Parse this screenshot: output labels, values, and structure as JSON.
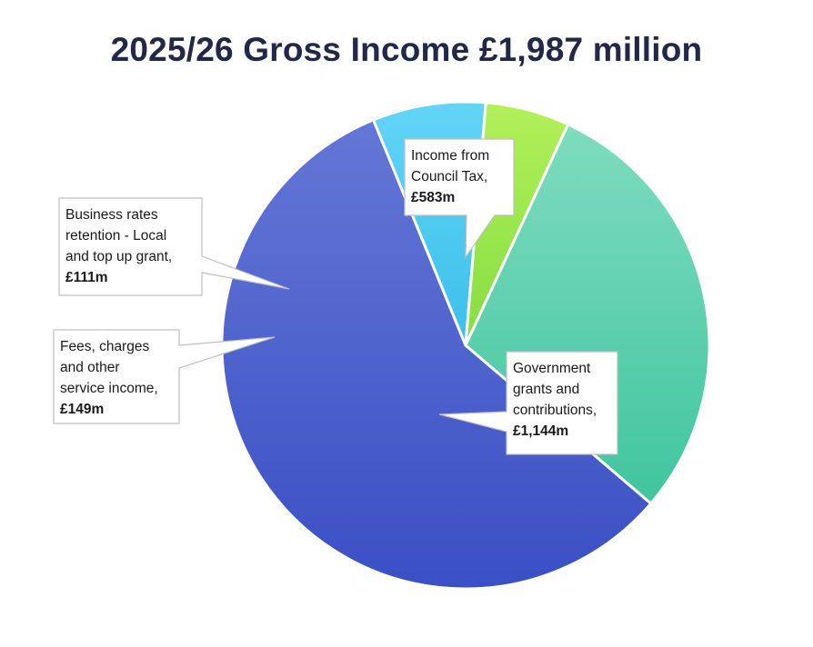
{
  "chart_data": {
    "type": "pie",
    "title": "2025/26 Gross Income £1,987 million",
    "slices": [
      {
        "id": "gov",
        "label_lines": [
          "Government",
          "grants and",
          "contributions,"
        ],
        "value_label": "£1,144m",
        "value": 1144,
        "color": "#4a63cf"
      },
      {
        "id": "fees",
        "label_lines": [
          "Fees, charges",
          "and other",
          "service income,"
        ],
        "value_label": "£149m",
        "value": 149,
        "color": "#4fc9ef"
      },
      {
        "id": "brr",
        "label_lines": [
          "Business rates",
          "retention - Local",
          "and top up grant,"
        ],
        "value_label": "£111m",
        "value": 111,
        "color": "#96e54e"
      },
      {
        "id": "ctax",
        "label_lines": [
          "Income from",
          "Council Tax,"
        ],
        "value_label": "£583m",
        "value": 583,
        "color": "#5dd3b0"
      }
    ]
  }
}
